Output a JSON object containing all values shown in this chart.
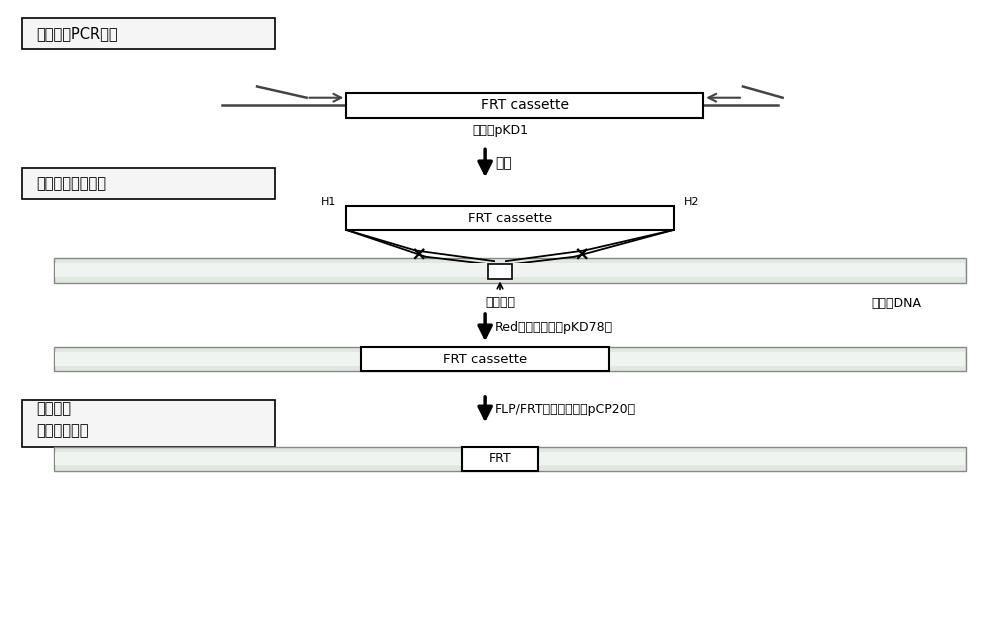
{
  "bg_color": "#f0f0f0",
  "white": "#ffffff",
  "black": "#000000",
  "gray_bar_face": "#e8e8e8",
  "gray_bar_edge": "#aaaaaa",
  "green_stripe": "#b8c8b0",
  "dark_gray_line": "#666666",
  "step1_label": "第一步：PCR扩增",
  "step2_label": "第二步：基因插入",
  "step3_label": "第三步：\n剪切抗性基因",
  "frt_cassette": "FRT cassette",
  "frt_label": "FRT",
  "template_label": "模板是pKD1",
  "insertion_label": "插入位点",
  "chromosome_label": "染色体DNA",
  "arrow1_label": "电转",
  "arrow2_label": "Red介导的重组（pKD78）",
  "arrow3_label": "FLP/FRT介导的重组（pCP20）",
  "h1_label": "H1",
  "h2_label": "H2"
}
